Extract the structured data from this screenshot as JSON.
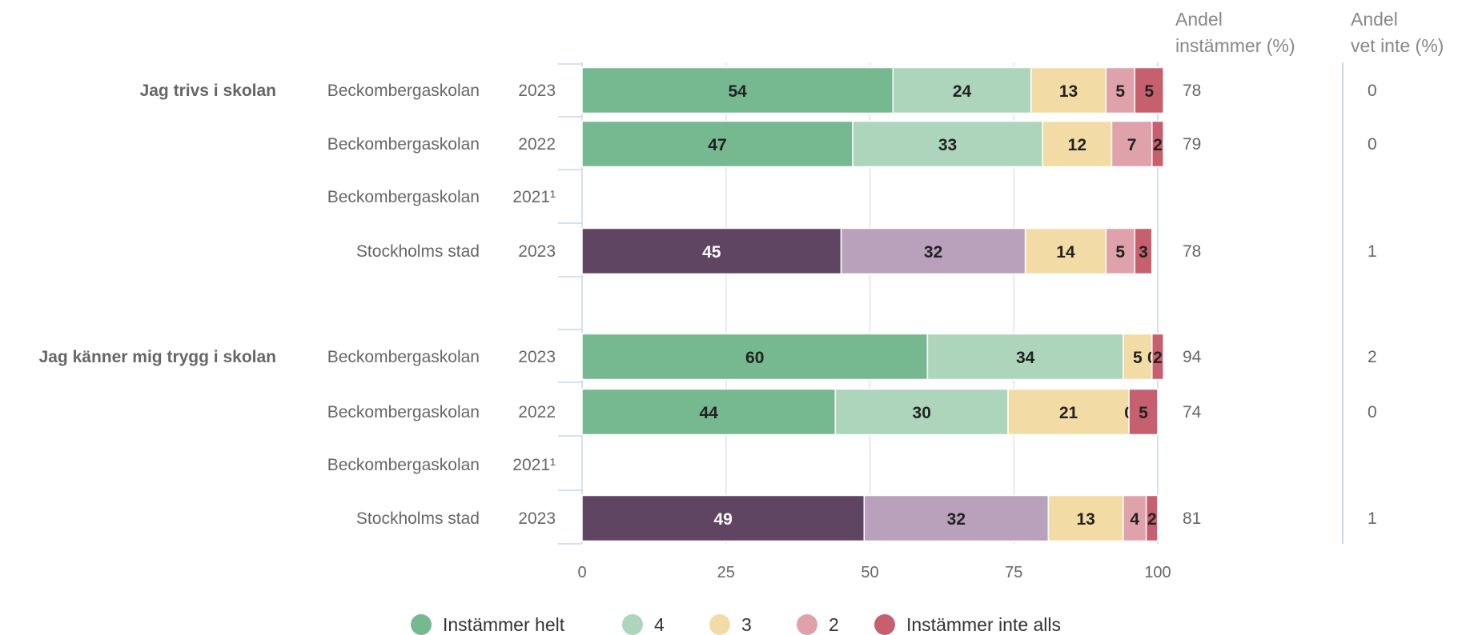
{
  "chart_data": {
    "type": "bar",
    "orientation": "horizontal",
    "stacked": true,
    "xlim": [
      0,
      100
    ],
    "xticks": [
      "0",
      "25",
      "50",
      "75",
      "100"
    ],
    "grid": true,
    "legend_position": "bottom",
    "column_headers": {
      "agree": [
        "Andel",
        "instämmer (%)"
      ],
      "dontknow": [
        "Andel",
        "vet inte (%)"
      ]
    },
    "legend": [
      {
        "label": "Instämmer helt",
        "color": "#76b890"
      },
      {
        "label": "4",
        "color": "#add5bb"
      },
      {
        "label": "3",
        "color": "#f3dba5"
      },
      {
        "label": "2",
        "color": "#e0a2aa"
      },
      {
        "label": "Instämmer inte alls",
        "color": "#c7606e"
      }
    ],
    "city_colors": [
      "#5f4562",
      "#b9a0bb",
      "#f3dba5",
      "#e0a2aa",
      "#c7606e"
    ],
    "groups": [
      {
        "question": "Jag trivs i skolan",
        "rows": [
          {
            "entity": "Beckombergaskolan",
            "year": "2023",
            "values": [
              54,
              24,
              13,
              5,
              5
            ],
            "agree": "78",
            "dontknow": "0",
            "city": false
          },
          {
            "entity": "Beckombergaskolan",
            "year": "2022",
            "values": [
              47,
              33,
              12,
              7,
              2
            ],
            "agree": "79",
            "dontknow": "0",
            "city": false
          },
          {
            "entity": "Beckombergaskolan",
            "year": "2021¹",
            "values": null,
            "agree": "",
            "dontknow": "",
            "city": false
          },
          {
            "entity": "Stockholms stad",
            "year": "2023",
            "values": [
              45,
              32,
              14,
              5,
              3
            ],
            "agree": "78",
            "dontknow": "1",
            "city": true
          }
        ]
      },
      {
        "question": "Jag känner mig trygg i skolan",
        "rows": [
          {
            "entity": "Beckombergaskolan",
            "year": "2023",
            "values": [
              60,
              34,
              5,
              0,
              2
            ],
            "agree": "94",
            "dontknow": "2",
            "city": false
          },
          {
            "entity": "Beckombergaskolan",
            "year": "2022",
            "values": [
              44,
              30,
              21,
              0,
              5
            ],
            "agree": "74",
            "dontknow": "0",
            "city": false
          },
          {
            "entity": "Beckombergaskolan",
            "year": "2021¹",
            "values": null,
            "agree": "",
            "dontknow": "",
            "city": false
          },
          {
            "entity": "Stockholms stad",
            "year": "2023",
            "values": [
              49,
              32,
              13,
              4,
              2
            ],
            "agree": "81",
            "dontknow": "1",
            "city": true
          }
        ]
      }
    ]
  }
}
